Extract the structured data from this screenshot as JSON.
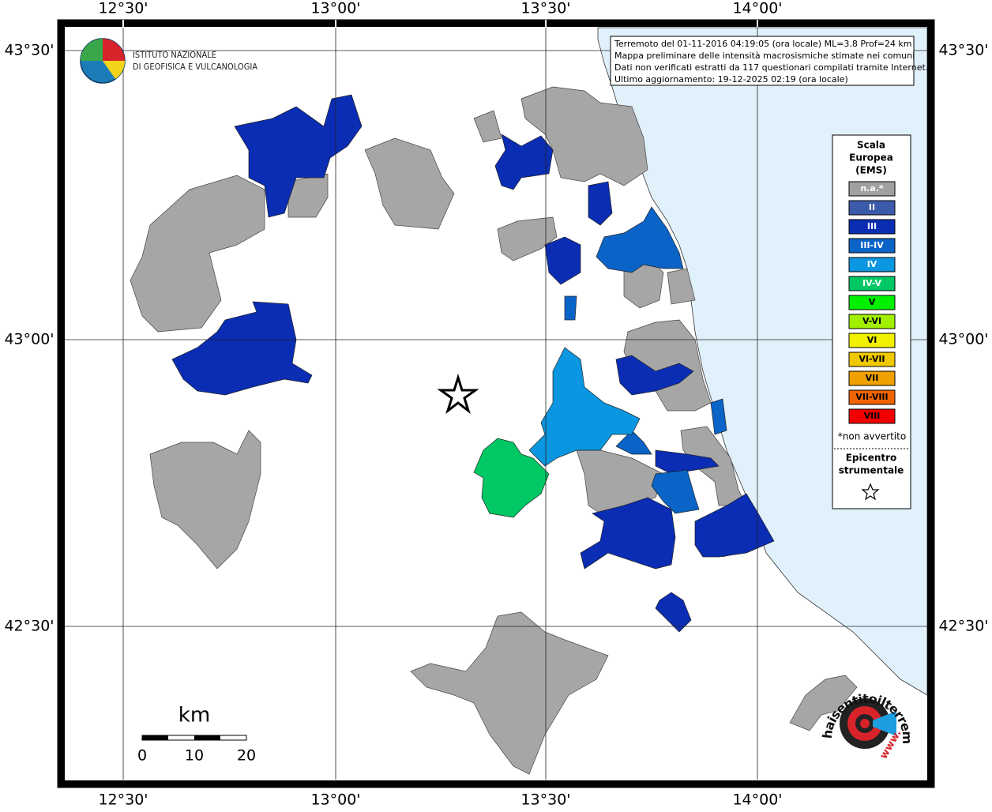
{
  "map": {
    "lon_labels_top": [
      "12°30'",
      "13°00'",
      "13°30'",
      "14°00'"
    ],
    "lon_labels_bottom": [
      "12°30'",
      "13°00'",
      "13°30'",
      "14°00'"
    ],
    "lat_labels_left": [
      "43°30'",
      "43°00'",
      "42°30'"
    ],
    "lat_labels_right": [
      "43°30'",
      "43°00'",
      "42°30'"
    ]
  },
  "logo": {
    "line1": "ISTITUTO NAZIONALE",
    "line2": "DI GEOFISICA E VULCANOLOGIA"
  },
  "info_box": {
    "lines": [
      "Terremoto del 01-11-2016 04:19:05 (ora locale) ML=3.8 Prof=24 km",
      "Mappa preliminare delle intensità macrosismiche stimate nei comuni",
      "Dati non verificati estratti da 117 questionari compilati tramite Internet.",
      "Ultimo aggiornamento: 19-12-2025 02:19 (ora locale)"
    ]
  },
  "legend": {
    "title": [
      "Scala",
      "Europea",
      "(EMS)"
    ],
    "items": [
      {
        "label": "n.a.*",
        "color": "#a0a0a0"
      },
      {
        "label": "II",
        "color": "#3c5aaa"
      },
      {
        "label": "III",
        "color": "#0a2db4"
      },
      {
        "label": "III-IV",
        "color": "#0a64c8"
      },
      {
        "label": "IV",
        "color": "#0a96e0"
      },
      {
        "label": "IV-V",
        "color": "#00c864"
      },
      {
        "label": "V",
        "color": "#00f000"
      },
      {
        "label": "V-VI",
        "color": "#a0f000"
      },
      {
        "label": "VI",
        "color": "#f0f000"
      },
      {
        "label": "VI-VII",
        "color": "#f0c800"
      },
      {
        "label": "VII",
        "color": "#f0a000"
      },
      {
        "label": "VII-VIII",
        "color": "#f06400"
      },
      {
        "label": "VIII",
        "color": "#f00000"
      }
    ],
    "note": "*non avvertito",
    "epicenter_label": [
      "Epicentro",
      "strumentale"
    ]
  },
  "scale_bar": {
    "unit": "km",
    "labels": [
      "0",
      "10",
      "20"
    ]
  },
  "site_logo": {
    "prefix": "www.",
    "text": "haisentitoilterremoto.it"
  }
}
